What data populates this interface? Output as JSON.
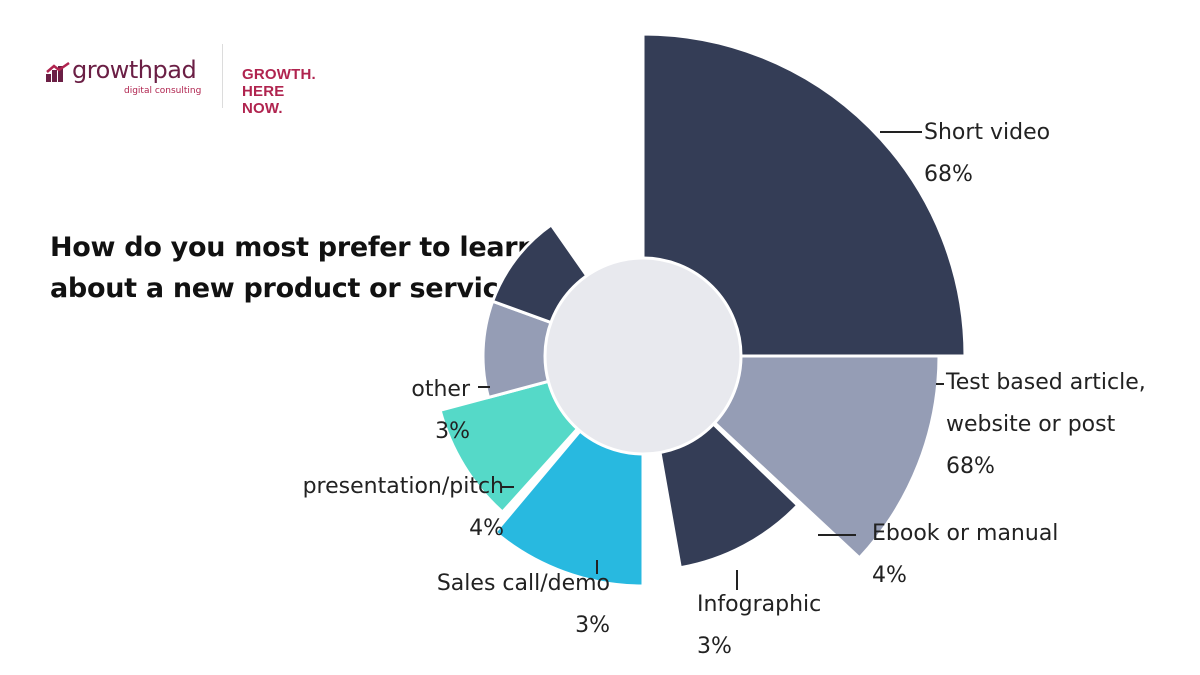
{
  "brand": {
    "logo_name": "growthpad",
    "logo_sub": "digital consulting",
    "tagline": "GROWTH. HERE NOW."
  },
  "colors": {
    "dark_navy": "#343d56",
    "slate": "#959db5",
    "teal": "#55d9c8",
    "sky": "#28b9e0",
    "center": "#e8e9ee",
    "brand": "#6b1f45",
    "brand_red": "#b0244f"
  },
  "chart_data": {
    "type": "polar-area",
    "title_lines": [
      "How do you most prefer to learn",
      "about a new product or service"
    ],
    "slices": [
      {
        "name_lines": [
          "Short video"
        ],
        "value_label": "68%",
        "value": 68,
        "color": "#343d56"
      },
      {
        "name_lines": [
          "Test based article,",
          "website or post"
        ],
        "value_label": "68%",
        "value": 68,
        "color": "#959db5"
      },
      {
        "name_lines": [
          "Ebook or manual"
        ],
        "value_label": "4%",
        "value": 4,
        "color": "#343d56"
      },
      {
        "name_lines": [
          "Infographic"
        ],
        "value_label": "3%",
        "value": 3,
        "color": "#28b9e0"
      },
      {
        "name_lines": [
          "Sales call/demo"
        ],
        "value_label": "3%",
        "value": 3,
        "color": "#55d9c8"
      },
      {
        "name_lines": [
          "presentation/pitch"
        ],
        "value_label": "4%",
        "value": 4,
        "color": "#959db5"
      },
      {
        "name_lines": [
          "other"
        ],
        "value_label": "3%",
        "value": 3,
        "color": "#343d56"
      }
    ]
  }
}
